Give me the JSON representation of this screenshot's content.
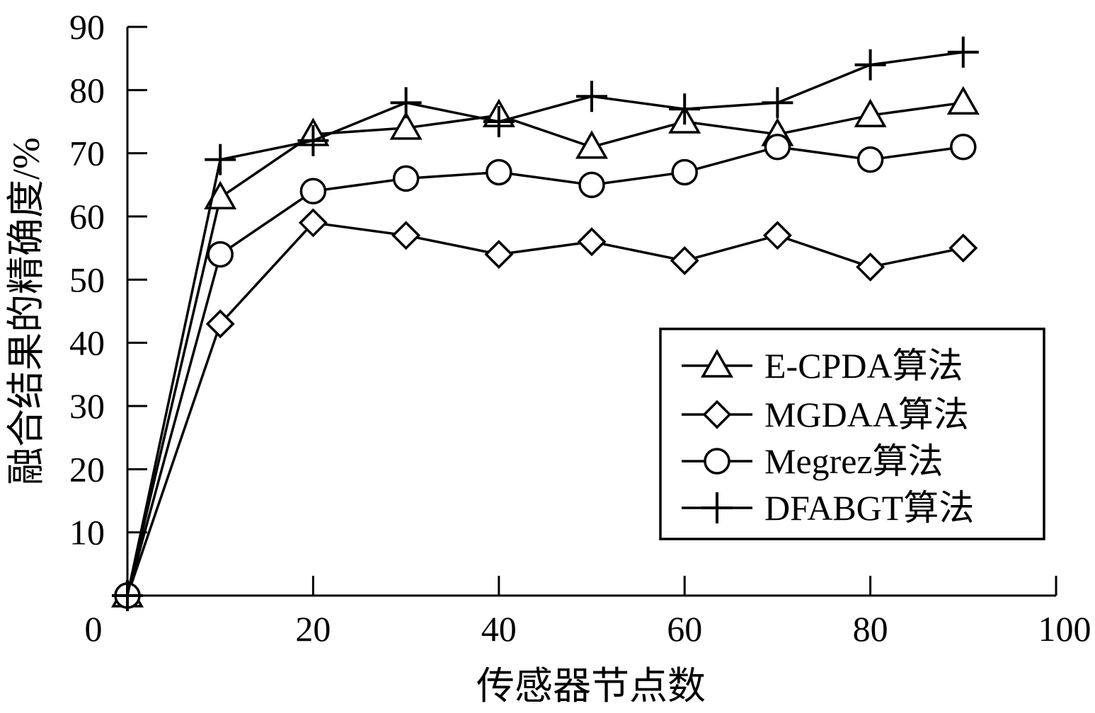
{
  "chart_data": {
    "type": "line",
    "title": "",
    "xlabel": "传感器节点数",
    "ylabel": "融合结果的精确度/%",
    "xlim": [
      0,
      100
    ],
    "ylim": [
      0,
      90
    ],
    "xticks": [
      0,
      20,
      40,
      60,
      80,
      100
    ],
    "yticks": [
      10,
      20,
      30,
      40,
      50,
      60,
      70,
      80,
      90
    ],
    "grid": false,
    "legend_position": "bottom-right",
    "x": [
      0,
      10,
      20,
      30,
      40,
      50,
      60,
      70,
      80,
      90
    ],
    "series": [
      {
        "name": "E-CPDA算法",
        "marker": "triangle",
        "values": [
          0,
          63,
          73,
          74,
          76,
          71,
          75,
          73,
          76,
          78
        ]
      },
      {
        "name": "MGDAA算法",
        "marker": "diamond",
        "values": [
          0,
          43,
          59,
          57,
          54,
          56,
          53,
          57,
          52,
          55
        ]
      },
      {
        "name": "Megrez算法",
        "marker": "circle",
        "values": [
          0,
          54,
          64,
          66,
          67,
          65,
          67,
          71,
          69,
          71
        ]
      },
      {
        "name": "DFABGT算法",
        "marker": "plus",
        "values": [
          0,
          69,
          72,
          78,
          75,
          79,
          77,
          78,
          84,
          86
        ]
      }
    ]
  }
}
